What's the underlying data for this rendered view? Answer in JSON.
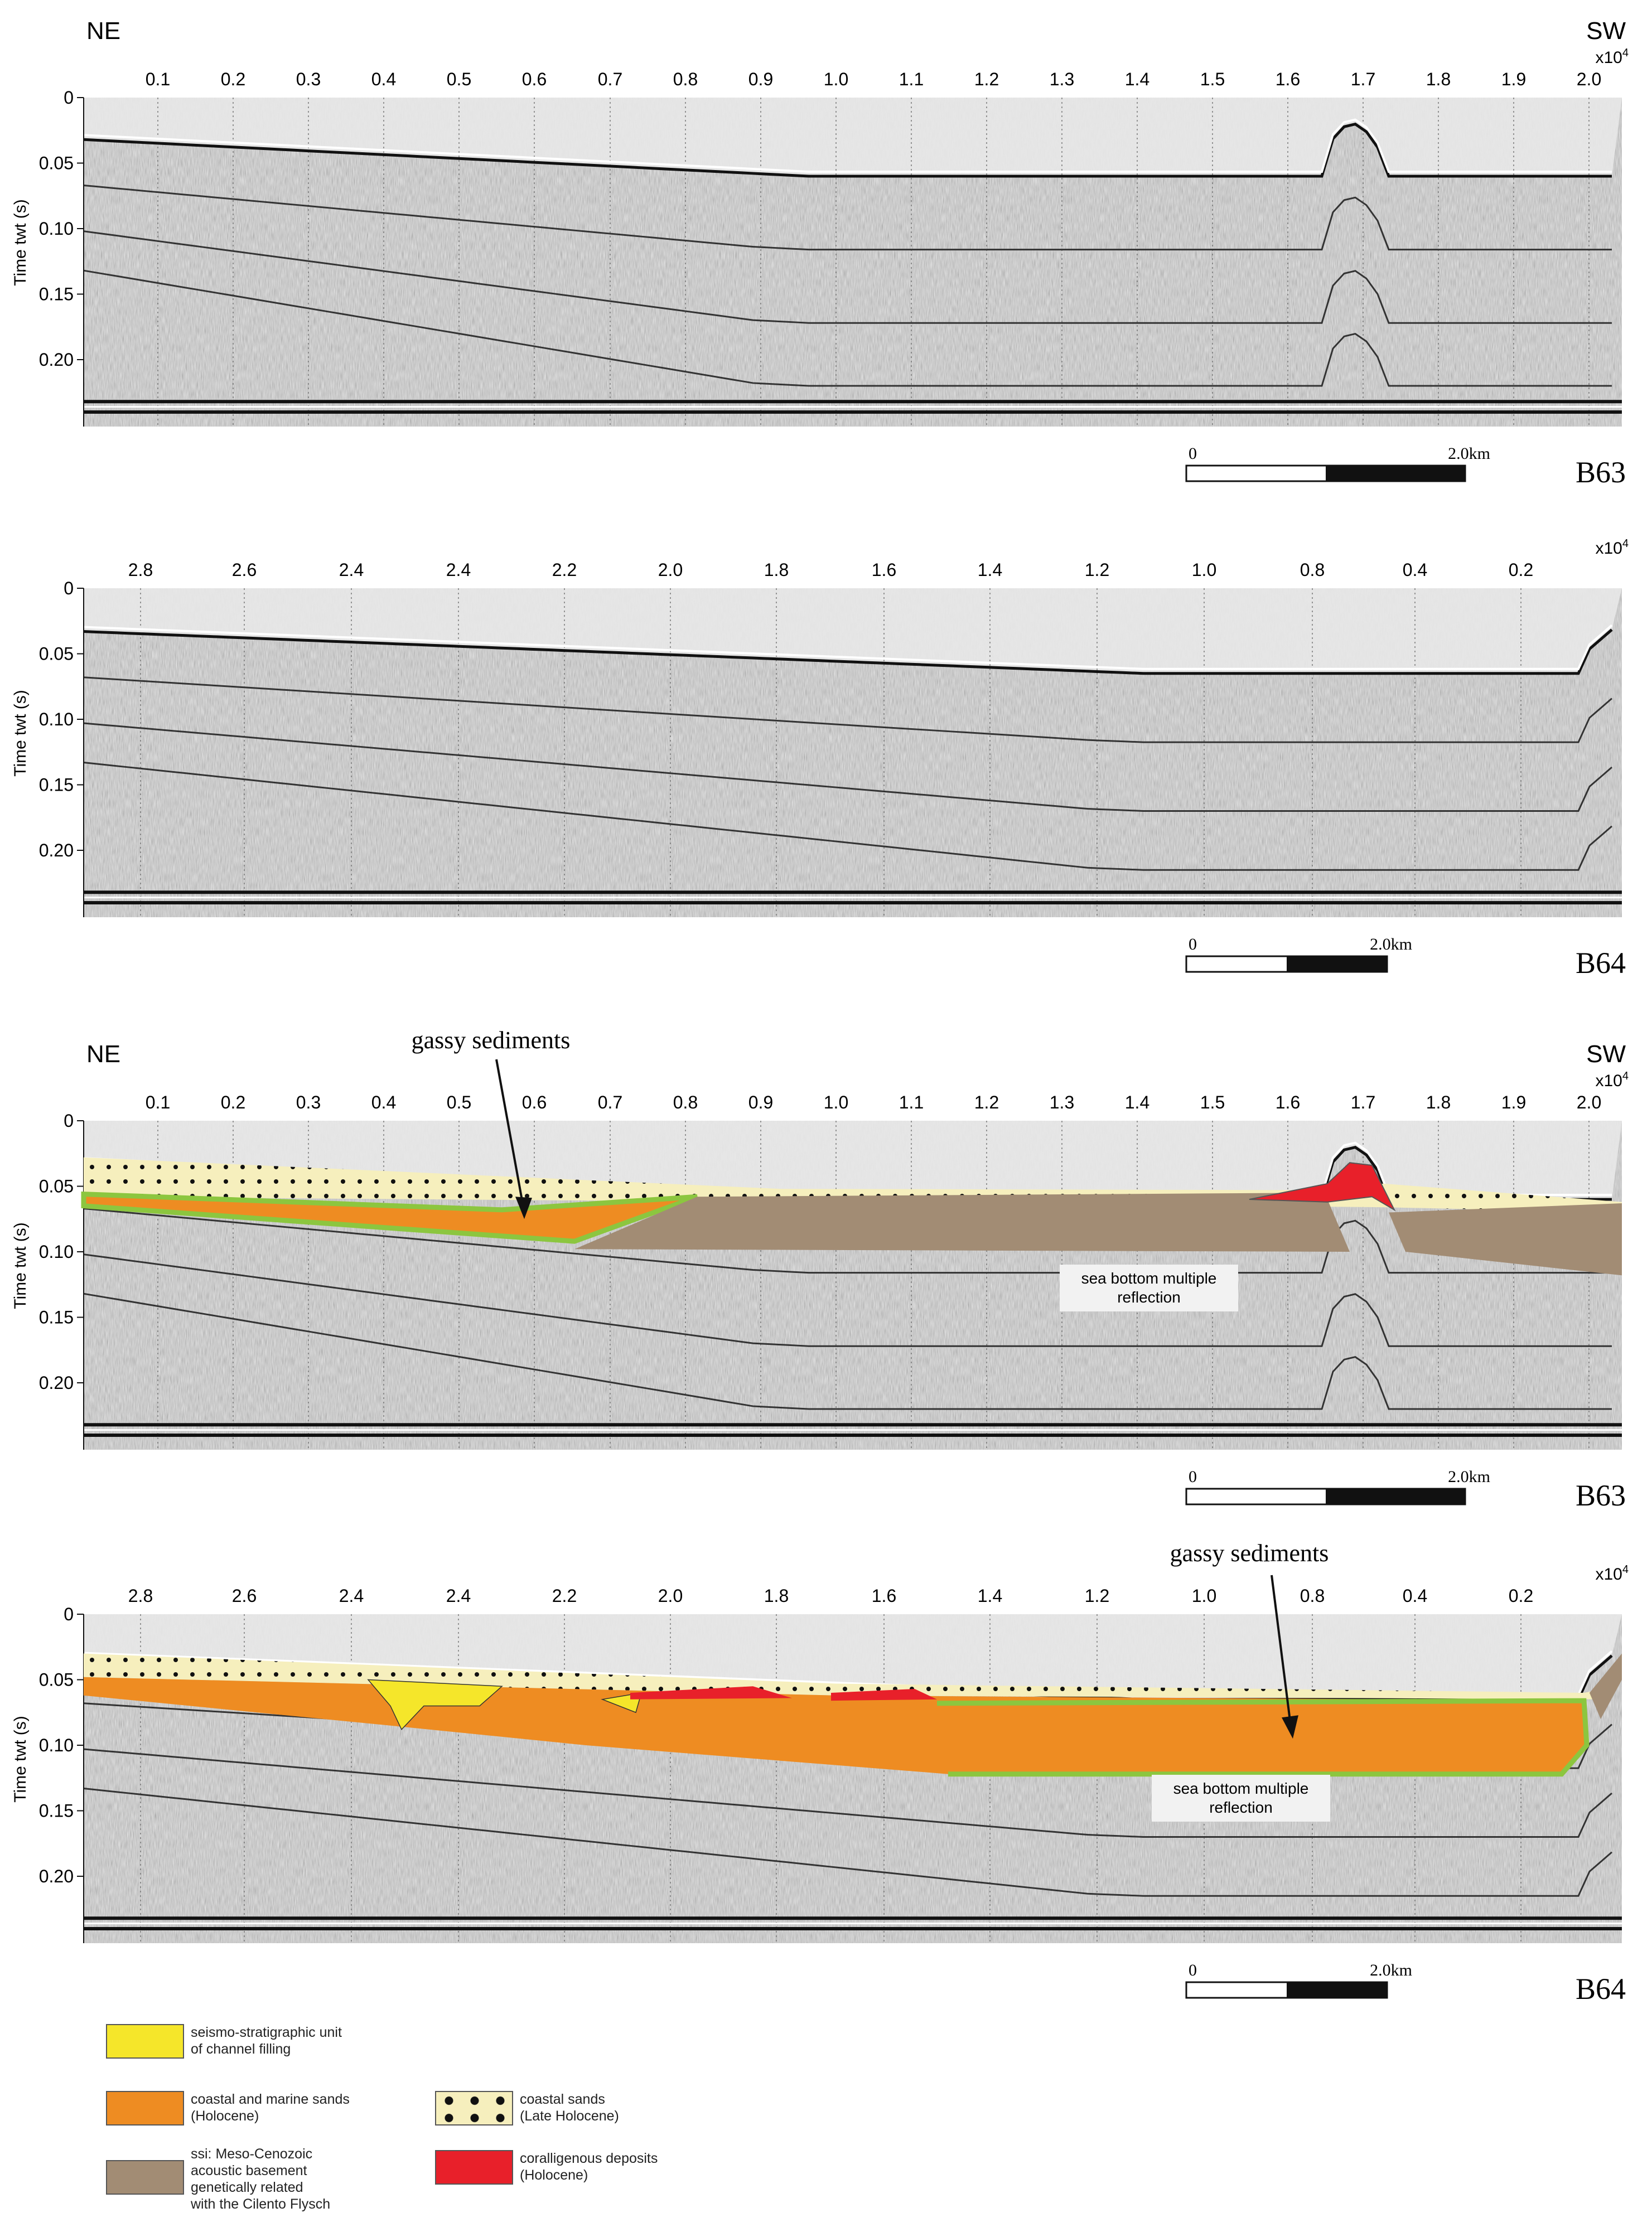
{
  "panels": [
    {
      "id": "B63-raw",
      "left_dir": "NE",
      "right_dir": "SW",
      "x_exponent": "x10",
      "x_exponent_power": "4",
      "x_ticks": [
        "0.1",
        "0.2",
        "0.3",
        "0.4",
        "0.5",
        "0.6",
        "0.7",
        "0.8",
        "0.9",
        "1.0",
        "1.1",
        "1.2",
        "1.3",
        "1.4",
        "1.5",
        "1.6",
        "1.7",
        "1.8",
        "1.9",
        "2.0"
      ],
      "y_label": "Time twt (s)",
      "y_ticks": [
        "0",
        "0.05",
        "0.10",
        "0.15",
        "0.20"
      ],
      "scale_start": "0",
      "scale_end": "2.0km",
      "profile_id": "B63",
      "annotation": "",
      "callout": ""
    },
    {
      "id": "B64-raw",
      "left_dir": "",
      "right_dir": "",
      "x_exponent": "x10",
      "x_exponent_power": "4",
      "x_ticks": [
        "2.8",
        "2.6",
        "2.4",
        "2.4",
        "2.2",
        "2.0",
        "1.8",
        "1.6",
        "1.4",
        "1.2",
        "1.0",
        "0.8",
        "0.4",
        "0.2"
      ],
      "y_label": "Time twt (s)",
      "y_ticks": [
        "0",
        "0.05",
        "0.10",
        "0.15",
        "0.20"
      ],
      "scale_start": "0",
      "scale_end": "2.0km",
      "profile_id": "B64",
      "annotation": "",
      "callout": ""
    },
    {
      "id": "B63-interpreted",
      "left_dir": "NE",
      "right_dir": "SW",
      "x_exponent": "x10",
      "x_exponent_power": "4",
      "x_ticks": [
        "0.1",
        "0.2",
        "0.3",
        "0.4",
        "0.5",
        "0.6",
        "0.7",
        "0.8",
        "0.9",
        "1.0",
        "1.1",
        "1.2",
        "1.3",
        "1.4",
        "1.5",
        "1.6",
        "1.7",
        "1.8",
        "1.9",
        "2.0"
      ],
      "y_label": "Time twt (s)",
      "y_ticks": [
        "0",
        "0.05",
        "0.10",
        "0.15",
        "0.20"
      ],
      "scale_start": "0",
      "scale_end": "2.0km",
      "profile_id": "B63",
      "annotation": "gassy sediments",
      "callout": "sea bottom multiple\nreflection"
    },
    {
      "id": "B64-interpreted",
      "left_dir": "",
      "right_dir": "",
      "x_exponent": "x10",
      "x_exponent_power": "4",
      "x_ticks": [
        "2.8",
        "2.6",
        "2.4",
        "2.4",
        "2.2",
        "2.0",
        "1.8",
        "1.6",
        "1.4",
        "1.2",
        "1.0",
        "0.8",
        "0.4",
        "0.2"
      ],
      "y_label": "Time twt (s)",
      "y_ticks": [
        "0",
        "0.05",
        "0.10",
        "0.15",
        "0.20"
      ],
      "scale_start": "0",
      "scale_end": "2.0km",
      "profile_id": "B64",
      "annotation": "gassy sediments",
      "callout": "sea bottom multiple\nreflection"
    }
  ],
  "legend": [
    {
      "key": "channel",
      "text": "seismo-stratigraphic unit\nof channel filling",
      "color": "#f5e62a"
    },
    {
      "key": "marine_sands",
      "text": "coastal and marine sands\n(Holocene)",
      "color": "#ee8c22"
    },
    {
      "key": "basement",
      "text": "ssi: Meso-Cenozoic\nacoustic basement\ngenetically related\nwith the Cilento Flysch",
      "color": "#a28c74"
    },
    {
      "key": "coastal_sands",
      "text": "coastal sands\n(Late Holocene)",
      "color": "#f6efbd"
    },
    {
      "key": "coralligenous",
      "text": "coralligenous deposits\n(Holocene)",
      "color": "#e8202a"
    }
  ],
  "colors": {
    "sand_fill": "#f6efbd",
    "marine_sand_fill": "#ee8c22",
    "basement_fill": "#a28c74",
    "channel_fill": "#f5e62a",
    "coral_fill": "#e8202a",
    "gas_outline": "#8cc63f",
    "seismic_bg": "#cfcfcf"
  }
}
